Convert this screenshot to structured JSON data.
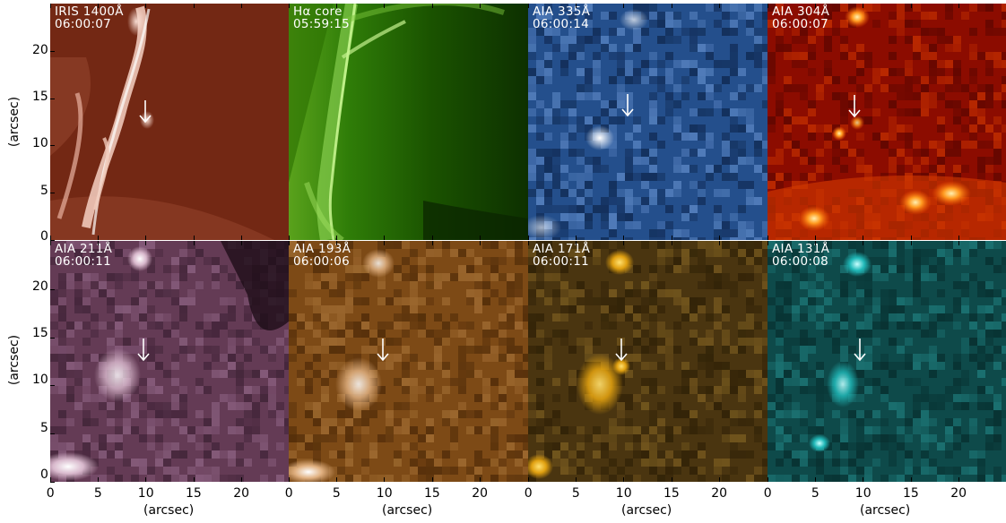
{
  "figure": {
    "x_axis_label": "(arcsec)",
    "y_axis_label": "(arcsec)",
    "x_ticks": [
      "0",
      "5",
      "10",
      "15",
      "20"
    ],
    "y_ticks": [
      "0",
      "5",
      "10",
      "15",
      "20"
    ],
    "axis_range_arcsec": [
      0,
      25
    ],
    "panels": [
      {
        "instrument": "IRIS 1400Å",
        "time": "06:00:07",
        "colormap": "iris-red",
        "base_color": "#7a2a14",
        "highlight_color": "#ffe6dc"
      },
      {
        "instrument": "Hα core",
        "time": "05:59:15",
        "colormap": "halpha-green",
        "base_color": "#1e6a00",
        "highlight_color": "#e8ffd0"
      },
      {
        "instrument": "AIA 335Å",
        "time": "06:00:14",
        "colormap": "aia335-blue",
        "base_color": "#1a3e7a",
        "highlight_color": "#ffffff"
      },
      {
        "instrument": "AIA 304Å",
        "time": "06:00:07",
        "colormap": "aia304-red",
        "base_color": "#8c0a00",
        "highlight_color": "#ffe8a0"
      },
      {
        "instrument": "AIA 211Å",
        "time": "06:00:11",
        "colormap": "aia211-purple",
        "base_color": "#5e3550",
        "highlight_color": "#ffffff"
      },
      {
        "instrument": "AIA 193Å",
        "time": "06:00:06",
        "colormap": "aia193-brown",
        "base_color": "#7a4814",
        "highlight_color": "#ffffff"
      },
      {
        "instrument": "AIA 171Å",
        "time": "06:00:11",
        "colormap": "aia171-gold",
        "base_color": "#4a3410",
        "highlight_color": "#ffd050"
      },
      {
        "instrument": "AIA 131Å",
        "time": "06:00:08",
        "colormap": "aia131-teal",
        "base_color": "#0d4a4a",
        "highlight_color": "#c8ffff"
      }
    ],
    "arrow_icon": "down-arrow-icon"
  }
}
